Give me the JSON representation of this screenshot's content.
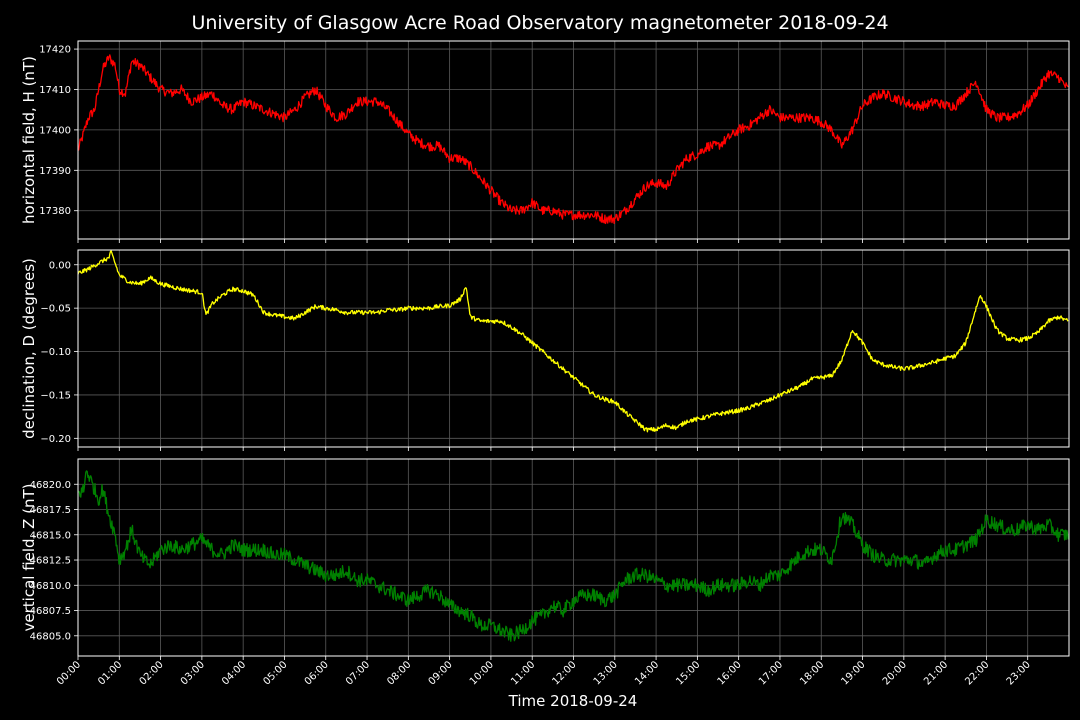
{
  "chart_data": {
    "type": "line",
    "title": "University of Glasgow Acre Road Observatory magnetometer 2018-09-24",
    "xlabel": "Time 2018-09-24",
    "x_ticks": [
      "00:00",
      "01:00",
      "02:00",
      "03:00",
      "04:00",
      "05:00",
      "06:00",
      "07:00",
      "08:00",
      "09:00",
      "10:00",
      "11:00",
      "12:00",
      "13:00",
      "14:00",
      "15:00",
      "16:00",
      "17:00",
      "18:00",
      "19:00",
      "20:00",
      "21:00",
      "22:00",
      "23:00"
    ],
    "xlim_hours": [
      0,
      24
    ],
    "grid": true,
    "background": "#000000",
    "panels": [
      {
        "key": "H",
        "ylabel": "horizontal field, H (nT)",
        "color": "#ff0000",
        "ylim": [
          17373,
          17422
        ],
        "y_ticks": [
          17380,
          17390,
          17400,
          17410,
          17420
        ],
        "y_tick_labels": [
          "17380",
          "17390",
          "17400",
          "17410",
          "17420"
        ],
        "noise": 1.2,
        "x": [
          0,
          0.1,
          0.25,
          0.4,
          0.5,
          0.6,
          0.75,
          0.9,
          1.0,
          1.15,
          1.3,
          1.5,
          1.75,
          2.0,
          2.25,
          2.5,
          2.75,
          3.0,
          3.25,
          3.5,
          3.75,
          4.0,
          4.25,
          4.5,
          4.75,
          5.0,
          5.25,
          5.5,
          5.75,
          6.0,
          6.25,
          6.5,
          6.75,
          7.0,
          7.25,
          7.5,
          7.75,
          8.0,
          8.25,
          8.5,
          8.75,
          9.0,
          9.25,
          9.5,
          9.75,
          10.0,
          10.25,
          10.5,
          10.75,
          11.0,
          11.25,
          11.5,
          11.75,
          12.0,
          12.25,
          12.5,
          12.75,
          13.0,
          13.25,
          13.5,
          13.75,
          14.0,
          14.25,
          14.5,
          14.75,
          15.0,
          15.25,
          15.5,
          15.75,
          16.0,
          16.25,
          16.5,
          16.75,
          17.0,
          17.25,
          17.5,
          17.75,
          18.0,
          18.25,
          18.5,
          18.75,
          19.0,
          19.25,
          19.5,
          19.75,
          20.0,
          20.25,
          20.5,
          20.75,
          21.0,
          21.25,
          21.5,
          21.75,
          22.0,
          22.25,
          22.5,
          22.75,
          23.0,
          23.25,
          23.5,
          23.75,
          23.98
        ],
        "values": [
          17395,
          17398,
          17403,
          17405,
          17410,
          17415,
          17418,
          17416,
          17410,
          17409,
          17417,
          17416,
          17413,
          17410,
          17409,
          17410,
          17407,
          17408,
          17409,
          17406,
          17405,
          17407,
          17406,
          17405,
          17404,
          17403,
          17405,
          17408,
          17410,
          17406,
          17403,
          17404,
          17407,
          17407,
          17407,
          17405,
          17402,
          17399,
          17397,
          17396,
          17396,
          17393,
          17393,
          17391,
          17388,
          17385,
          17382,
          17380,
          17380,
          17382,
          17380,
          17380,
          17379,
          17379,
          17379,
          17379,
          17378,
          17378,
          17380,
          17383,
          17386,
          17387,
          17386,
          17390,
          17393,
          17394,
          17396,
          17396,
          17398,
          17400,
          17401,
          17403,
          17405,
          17403,
          17403,
          17403,
          17403,
          17402,
          17400,
          17396,
          17400,
          17406,
          17408,
          17409,
          17408,
          17407,
          17406,
          17406,
          17407,
          17406,
          17406,
          17409,
          17412,
          17405,
          17403,
          17403,
          17404,
          17406,
          17410,
          17414,
          17413,
          17410
        ]
      },
      {
        "key": "D",
        "ylabel": "declination, D (degrees)",
        "color": "#ffff00",
        "ylim": [
          -0.21,
          0.017
        ],
        "y_ticks": [
          0.0,
          -0.05,
          -0.1,
          -0.15,
          -0.2
        ],
        "y_tick_labels": [
          "0.00",
          "−0.05",
          "−0.10",
          "−0.15",
          "−0.20"
        ],
        "noise": 0.0025,
        "x": [
          0,
          0.25,
          0.5,
          0.75,
          0.8,
          1.0,
          1.25,
          1.5,
          1.75,
          2.0,
          2.25,
          2.5,
          2.75,
          3.0,
          3.1,
          3.25,
          3.5,
          3.75,
          4.0,
          4.25,
          4.5,
          4.75,
          5.0,
          5.25,
          5.5,
          5.75,
          6.0,
          6.25,
          6.5,
          6.75,
          7.0,
          7.25,
          7.5,
          7.75,
          8.0,
          8.25,
          8.5,
          8.75,
          9.0,
          9.25,
          9.4,
          9.5,
          9.75,
          10.0,
          10.25,
          10.5,
          10.75,
          11.0,
          11.25,
          11.5,
          11.75,
          12.0,
          12.25,
          12.5,
          12.75,
          13.0,
          13.25,
          13.5,
          13.75,
          14.0,
          14.25,
          14.5,
          14.75,
          15.0,
          15.25,
          15.5,
          15.75,
          16.0,
          16.25,
          16.5,
          16.75,
          17.0,
          17.25,
          17.5,
          17.75,
          18.0,
          18.25,
          18.5,
          18.75,
          19.0,
          19.25,
          19.5,
          19.75,
          20.0,
          20.25,
          20.5,
          20.75,
          21.0,
          21.25,
          21.5,
          21.75,
          21.85,
          22.0,
          22.25,
          22.5,
          22.75,
          23.0,
          23.25,
          23.5,
          23.75,
          23.98
        ],
        "values": [
          -0.01,
          -0.005,
          0.002,
          0.008,
          0.015,
          -0.012,
          -0.02,
          -0.022,
          -0.015,
          -0.022,
          -0.025,
          -0.028,
          -0.03,
          -0.032,
          -0.058,
          -0.045,
          -0.035,
          -0.028,
          -0.03,
          -0.035,
          -0.055,
          -0.058,
          -0.06,
          -0.062,
          -0.055,
          -0.048,
          -0.05,
          -0.052,
          -0.055,
          -0.055,
          -0.055,
          -0.055,
          -0.052,
          -0.052,
          -0.05,
          -0.05,
          -0.05,
          -0.048,
          -0.047,
          -0.04,
          -0.025,
          -0.06,
          -0.065,
          -0.065,
          -0.065,
          -0.072,
          -0.08,
          -0.09,
          -0.1,
          -0.11,
          -0.12,
          -0.13,
          -0.14,
          -0.15,
          -0.155,
          -0.158,
          -0.17,
          -0.18,
          -0.19,
          -0.19,
          -0.185,
          -0.188,
          -0.18,
          -0.178,
          -0.175,
          -0.172,
          -0.17,
          -0.168,
          -0.165,
          -0.16,
          -0.156,
          -0.15,
          -0.145,
          -0.14,
          -0.132,
          -0.13,
          -0.128,
          -0.11,
          -0.075,
          -0.09,
          -0.11,
          -0.115,
          -0.118,
          -0.12,
          -0.118,
          -0.115,
          -0.112,
          -0.108,
          -0.105,
          -0.09,
          -0.05,
          -0.035,
          -0.048,
          -0.075,
          -0.085,
          -0.087,
          -0.085,
          -0.078,
          -0.065,
          -0.06,
          -0.065
        ]
      },
      {
        "key": "Z",
        "ylabel": "vertical field, Z (nT)",
        "color": "#008000",
        "ylim": [
          46803.0,
          46822.5
        ],
        "y_ticks": [
          46805.0,
          46807.5,
          46810.0,
          46812.5,
          46815.0,
          46817.5,
          46820.0
        ],
        "y_tick_labels": [
          "46805.0",
          "46807.5",
          "46810.0",
          "46812.5",
          "46815.0",
          "46817.5",
          "46820.0"
        ],
        "noise": 0.7,
        "x": [
          0,
          0.15,
          0.2,
          0.35,
          0.5,
          0.6,
          0.75,
          0.9,
          1.0,
          1.15,
          1.3,
          1.5,
          1.6,
          1.75,
          2.0,
          2.25,
          2.5,
          2.75,
          3.0,
          3.25,
          3.5,
          3.75,
          4.0,
          4.25,
          4.5,
          4.75,
          5.0,
          5.25,
          5.5,
          5.75,
          6.0,
          6.25,
          6.5,
          6.75,
          7.0,
          7.25,
          7.5,
          7.75,
          8.0,
          8.25,
          8.5,
          8.75,
          9.0,
          9.25,
          9.5,
          9.75,
          10.0,
          10.25,
          10.5,
          10.75,
          11.0,
          11.25,
          11.5,
          11.75,
          12.0,
          12.25,
          12.5,
          12.75,
          13.0,
          13.25,
          13.5,
          13.75,
          14.0,
          14.25,
          14.5,
          14.75,
          15.0,
          15.25,
          15.5,
          15.75,
          16.0,
          16.25,
          16.5,
          16.75,
          17.0,
          17.25,
          17.5,
          17.75,
          18.0,
          18.25,
          18.5,
          18.75,
          19.0,
          19.25,
          19.5,
          19.75,
          20.0,
          20.25,
          20.5,
          20.75,
          21.0,
          21.25,
          21.5,
          21.75,
          22.0,
          22.25,
          22.5,
          22.75,
          23.0,
          23.25,
          23.5,
          23.75,
          23.98
        ],
        "values": [
          46819,
          46819.5,
          46821.5,
          46820,
          46818.5,
          46819.5,
          46817,
          46815,
          46812.5,
          46813.5,
          46815.5,
          46813,
          46812.5,
          46812,
          46813.5,
          46814,
          46813.5,
          46814,
          46814.5,
          46813.5,
          46813,
          46814,
          46813.5,
          46813.5,
          46813.5,
          46813,
          46813,
          46812.5,
          46812,
          46811.5,
          46811,
          46811,
          46811.5,
          46810.5,
          46810.5,
          46810,
          46809.5,
          46809,
          46808.5,
          46809,
          46809.5,
          46809,
          46808,
          46807.5,
          46807,
          46806,
          46806,
          46805.5,
          46805,
          46805.5,
          46806.5,
          46807,
          46808,
          46807.5,
          46808.5,
          46809,
          46809,
          46808.5,
          46809,
          46810.5,
          46811,
          46811,
          46810.5,
          46810,
          46810,
          46810,
          46810,
          46809.5,
          46810,
          46810,
          46810,
          46810.5,
          46810,
          46811,
          46811,
          46812,
          46813,
          46813.5,
          46813.5,
          46812.5,
          46817,
          46816,
          46814,
          46813,
          46812.5,
          46812.5,
          46812.5,
          46812.5,
          46812,
          46813,
          46813.5,
          46813.5,
          46814,
          46814.5,
          46816.5,
          46816,
          46815.5,
          46815.5,
          46816,
          46815.5,
          46816,
          46815,
          46815
        ]
      }
    ]
  }
}
